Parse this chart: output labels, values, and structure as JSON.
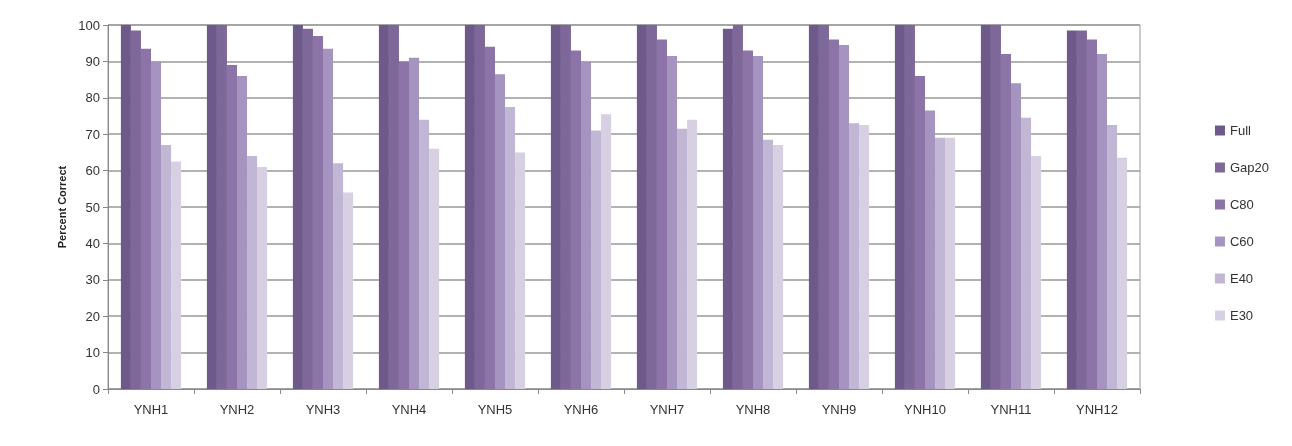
{
  "chart_data": {
    "type": "bar",
    "ylabel": "Percent Correct",
    "categories": [
      "YNH1",
      "YNH2",
      "YNH3",
      "YNH4",
      "YNH5",
      "YNH6",
      "YNH7",
      "YNH8",
      "YNH9",
      "YNH10",
      "YNH11",
      "YNH12"
    ],
    "series": [
      {
        "name": "Full",
        "color": "#6e5a8a",
        "values": [
          100,
          100,
          100,
          100,
          100,
          100,
          100,
          99,
          100,
          100,
          100,
          98.5
        ]
      },
      {
        "name": "Gap20",
        "color": "#7e6899",
        "values": [
          98.5,
          100,
          99,
          100,
          100,
          100,
          100,
          100,
          100,
          100,
          100,
          98.5
        ]
      },
      {
        "name": "C80",
        "color": "#8d74a8",
        "values": [
          93.5,
          89,
          97,
          90,
          94,
          93,
          96,
          93,
          96,
          86,
          92,
          96
        ]
      },
      {
        "name": "C60",
        "color": "#a594bf",
        "values": [
          90,
          86,
          93.5,
          91,
          86.5,
          90,
          91.5,
          91.5,
          94.5,
          76.5,
          84,
          92
        ]
      },
      {
        "name": "E40",
        "color": "#c2b6d5",
        "values": [
          67,
          64,
          62,
          74,
          77.5,
          71,
          71.5,
          68.5,
          73,
          69,
          74.5,
          72.5
        ]
      },
      {
        "name": "E30",
        "color": "#d6d0e2",
        "values": [
          62.5,
          61,
          54,
          66,
          65,
          75.5,
          74,
          67,
          72.5,
          69,
          64,
          63.5
        ]
      }
    ],
    "ylim": [
      0,
      100
    ],
    "yticks": [
      0,
      10,
      20,
      30,
      40,
      50,
      60,
      70,
      80,
      90,
      100
    ],
    "grid": "y",
    "legend": "right"
  }
}
